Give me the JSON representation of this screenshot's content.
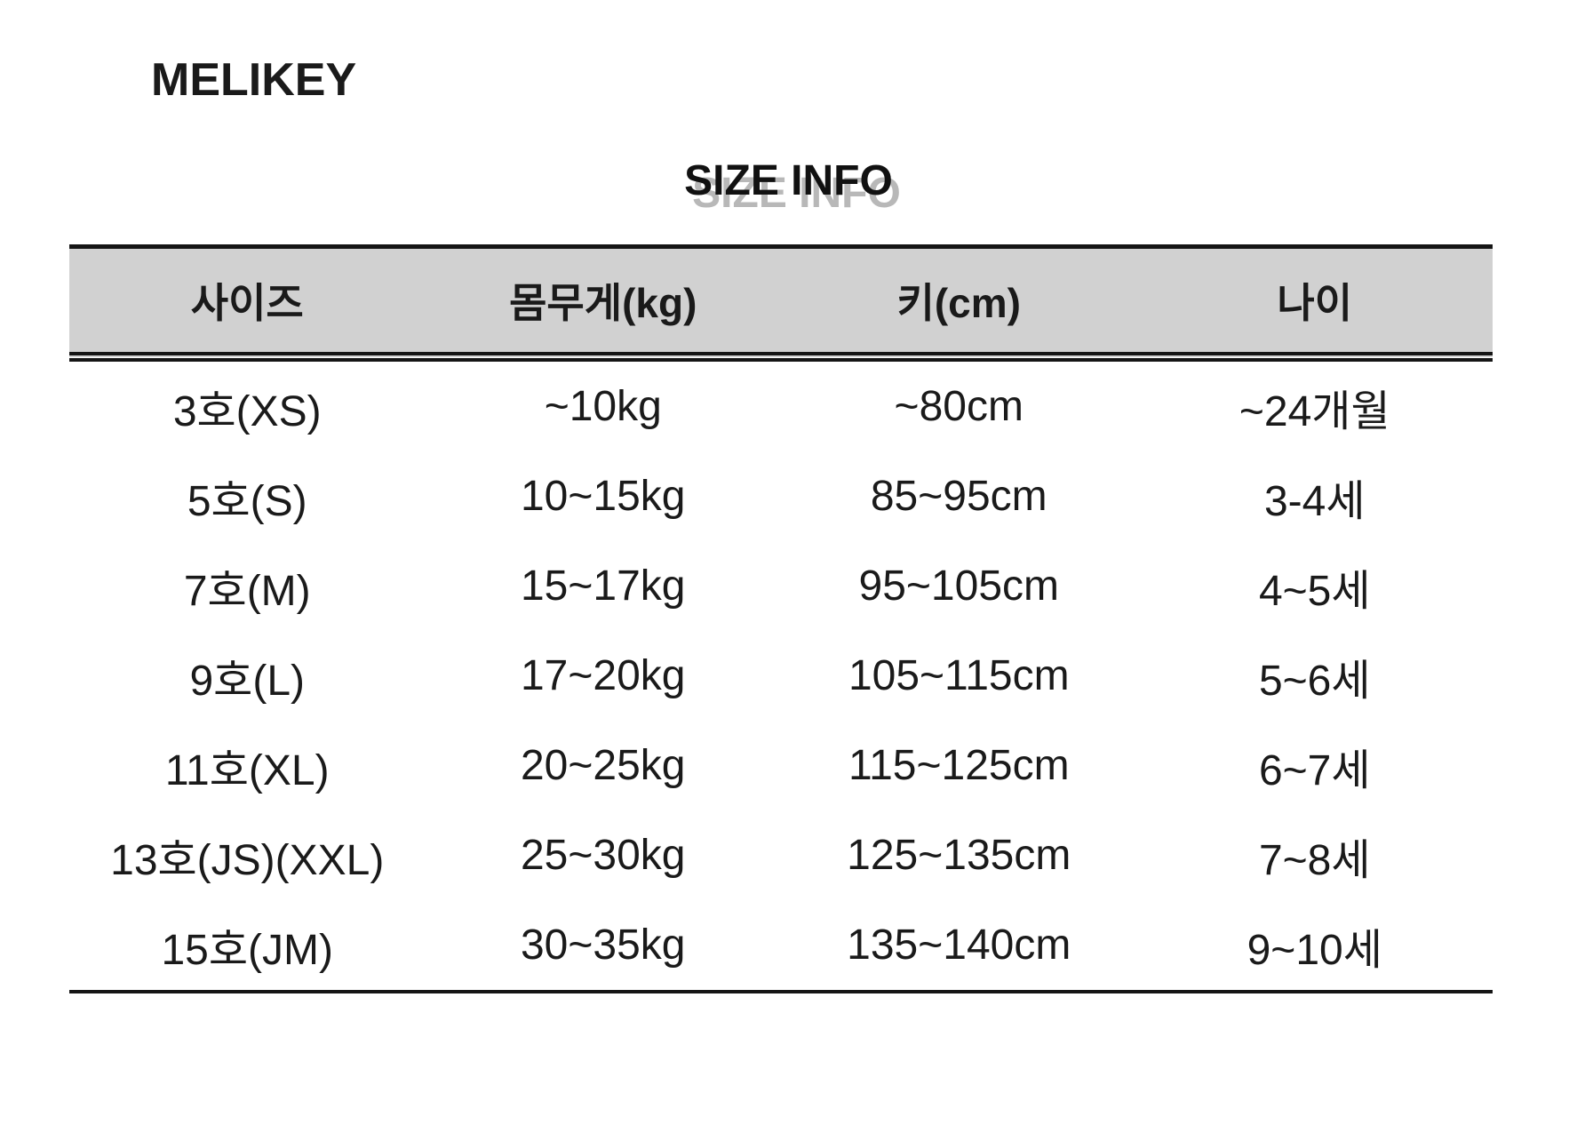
{
  "brand": "MELIKEY",
  "title": "SIZE INFO",
  "table": {
    "headers": [
      "사이즈",
      "몸무게(kg)",
      "키(cm)",
      "나이"
    ],
    "rows": [
      [
        "3호(XS)",
        "~10kg",
        "~80cm",
        "~24개월"
      ],
      [
        "5호(S)",
        "10~15kg",
        "85~95cm",
        "3-4세"
      ],
      [
        "7호(M)",
        "15~17kg",
        "95~105cm",
        "4~5세"
      ],
      [
        "9호(L)",
        "17~20kg",
        "105~115cm",
        "5~6세"
      ],
      [
        "11호(XL)",
        "20~25kg",
        "115~125cm",
        "6~7세"
      ],
      [
        "13호(JS)(XXL)",
        "25~30kg",
        "125~135cm",
        "7~8세"
      ],
      [
        "15호(JM)",
        "30~35kg",
        "135~140cm",
        "9~10세"
      ]
    ]
  },
  "colors": {
    "header_bg": "#d1d1d1",
    "border": "#151515",
    "text": "#1a1a1a",
    "title_shadow": "#b8b8b8"
  }
}
